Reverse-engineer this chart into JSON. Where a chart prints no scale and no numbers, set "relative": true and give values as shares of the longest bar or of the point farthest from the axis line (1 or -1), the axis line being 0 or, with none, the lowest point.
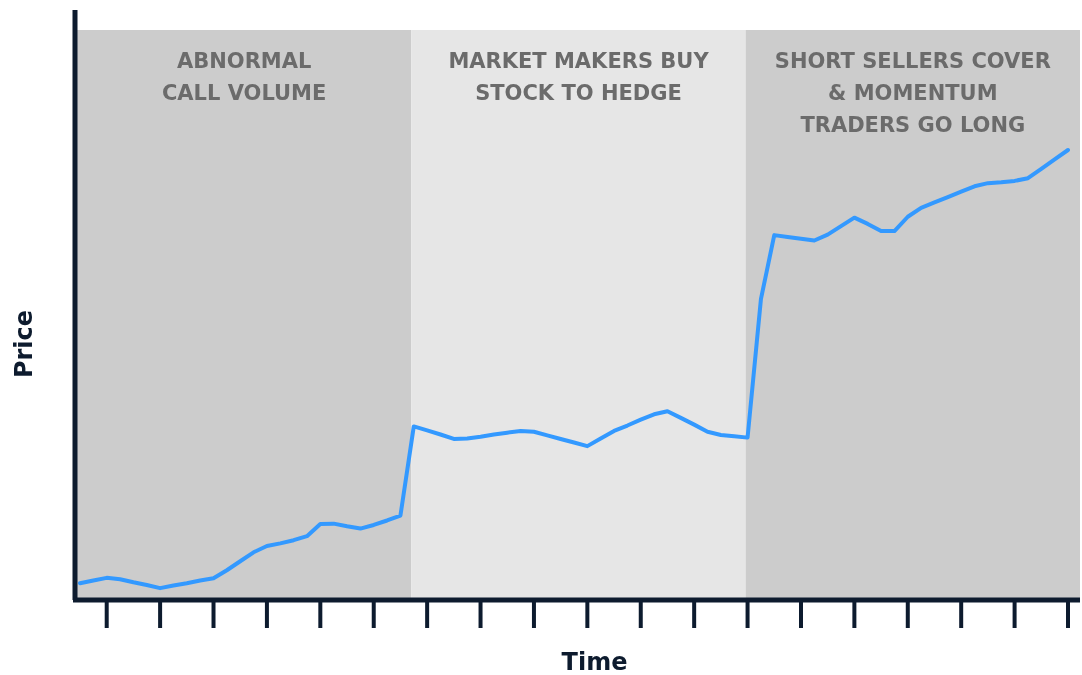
{
  "chart_data": {
    "type": "line",
    "xlabel": "Time",
    "ylabel": "Price",
    "relative": true,
    "marker": "none",
    "line_style": "solid",
    "categories": [
      null,
      null,
      null,
      null,
      null,
      null,
      null,
      null,
      null,
      null,
      null,
      null,
      null,
      null,
      null,
      null,
      null,
      null,
      null,
      null,
      null,
      null,
      null,
      null,
      null,
      null,
      null,
      null,
      null,
      null,
      null,
      null,
      null,
      null,
      null,
      null,
      null,
      null,
      null,
      null,
      null,
      null,
      null,
      null,
      null,
      null,
      null,
      null,
      null,
      null,
      null,
      null,
      null,
      null,
      null,
      null,
      null,
      null,
      null,
      null,
      null,
      null,
      null,
      null,
      null,
      null,
      null,
      null,
      null,
      null,
      null,
      null,
      null,
      null,
      null
    ],
    "annotations": [
      "ABNORMAL\nCALL VOLUME",
      "MARKET MAKERS BUY\nSTOCK TO HEDGE",
      "SHORT SELLERS COVER\n& MOMENTUM\nTRADERS GO LONG"
    ],
    "series": [
      {
        "color": "#3399ff",
        "values": [
          0.033,
          0.039,
          0.045,
          0.042,
          0.035,
          0.029,
          0.022,
          0.028,
          0.033,
          0.039,
          0.044,
          0.062,
          0.082,
          0.102,
          0.116,
          0.122,
          0.129,
          0.138,
          0.165,
          0.166,
          0.16,
          0.155,
          0.163,
          0.173,
          0.184,
          0.383,
          0.374,
          0.365,
          0.355,
          0.356,
          0.36,
          0.365,
          0.369,
          0.373,
          0.371,
          0.363,
          0.355,
          0.347,
          0.339,
          0.356,
          0.373,
          0.385,
          0.398,
          0.41,
          0.417,
          0.402,
          0.387,
          0.371,
          0.364,
          0.361,
          0.358,
          0.667,
          0.81,
          0.806,
          0.802,
          0.798,
          0.811,
          0.83,
          0.849,
          0.835,
          0.819,
          0.819,
          0.851,
          0.871,
          0.883,
          0.895,
          0.907,
          0.919,
          0.926,
          0.928,
          0.931,
          0.937,
          0.958,
          0.979,
          1.0
        ]
      }
    ]
  }
}
